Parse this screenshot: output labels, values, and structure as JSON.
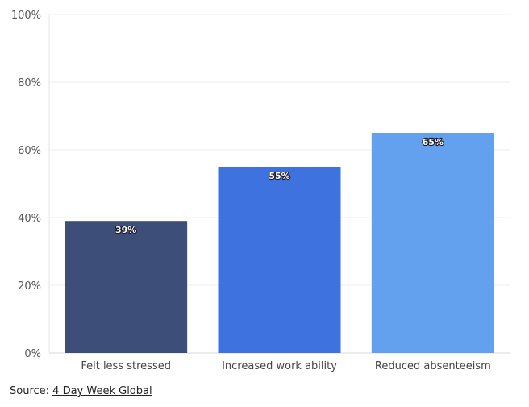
{
  "chart_data": {
    "type": "bar",
    "categories": [
      "Felt less stressed",
      "Increased work ability",
      "Reduced absenteeism"
    ],
    "values": [
      39,
      55,
      65
    ],
    "data_labels": [
      "39%",
      "55%",
      "65%"
    ],
    "bar_colors": [
      "#3d4f78",
      "#3e73df",
      "#63a0ee"
    ],
    "ylim": [
      0,
      100
    ],
    "yticks": [
      0,
      20,
      40,
      60,
      80,
      100
    ],
    "ytick_labels": [
      "0%",
      "20%",
      "40%",
      "60%",
      "80%",
      "100%"
    ],
    "grid": true
  },
  "source": {
    "prefix": "Source: ",
    "link_text": "4 Day Week Global"
  }
}
